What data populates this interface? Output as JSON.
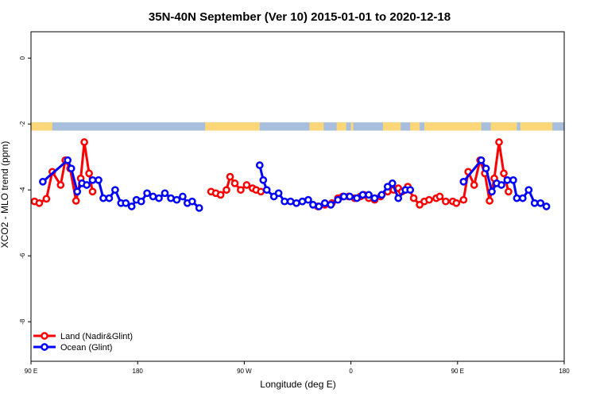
{
  "chart_data": {
    "type": "line",
    "title": "35N-40N September (Ver 10)   2015-01-01 to 2020-12-18",
    "xlabel": "Longitude (deg E)",
    "ylabel": "XCO2 - MLO trend (ppm)",
    "xlim": [
      90,
      540
    ],
    "ylim": [
      -9.2,
      0.8
    ],
    "x_ticks": [
      {
        "value": 90,
        "label": "90 E"
      },
      {
        "value": 180,
        "label": "180"
      },
      {
        "value": 270,
        "label": "90 W"
      },
      {
        "value": 360,
        "label": "0"
      },
      {
        "value": 450,
        "label": "90 E"
      },
      {
        "value": 540,
        "label": "180"
      }
    ],
    "y_ticks": [
      {
        "value": 0,
        "label": "0"
      },
      {
        "value": -2,
        "label": "-2"
      },
      {
        "value": -4,
        "label": "-4"
      },
      {
        "value": -6,
        "label": "-6"
      },
      {
        "value": -8,
        "label": "-8"
      }
    ],
    "grid": false,
    "legend_position": "bottom-left",
    "map_strip": {
      "y_range": [
        -2.2,
        -1.95
      ],
      "ocean_color": "#a7bfdc",
      "land_color": "#fcd77a",
      "land_ranges": [
        [
          90,
          100
        ],
        [
          100,
          108
        ],
        [
          237,
          283
        ],
        [
          325,
          337
        ],
        [
          348,
          356
        ],
        [
          360,
          362
        ],
        [
          387,
          402
        ],
        [
          410,
          418
        ],
        [
          422,
          470
        ],
        [
          478,
          500
        ],
        [
          503,
          530
        ]
      ]
    },
    "series": [
      {
        "name": "Land (Nadir&Glint)",
        "color": "#ff0000",
        "segments": [
          [
            [
              93,
              -4.35
            ],
            [
              97,
              -4.4
            ],
            [
              103,
              -4.27
            ],
            [
              108,
              -3.45
            ],
            [
              115,
              -3.85
            ],
            [
              119,
              -3.1
            ],
            [
              123,
              -3.35
            ],
            [
              128,
              -4.33
            ],
            [
              132,
              -3.65
            ],
            [
              135,
              -2.55
            ],
            [
              139,
              -3.5
            ],
            [
              142,
              -4.05
            ]
          ],
          [
            [
              242,
              -4.05
            ],
            [
              246,
              -4.1
            ],
            [
              250,
              -4.15
            ],
            [
              255,
              -4.0
            ],
            [
              258,
              -3.6
            ],
            [
              262,
              -3.8
            ],
            [
              267,
              -4.0
            ],
            [
              272,
              -3.85
            ],
            [
              277,
              -3.95
            ],
            [
              280,
              -4.0
            ],
            [
              284,
              -4.05
            ]
          ],
          [
            [
              332,
              -4.5
            ],
            [
              338,
              -4.45
            ],
            [
              344,
              -4.4
            ],
            [
              349,
              -4.25
            ],
            [
              353,
              -4.2
            ],
            [
              358,
              -4.2
            ],
            [
              363,
              -4.25
            ],
            [
              368,
              -4.2
            ],
            [
              371,
              -4.15
            ],
            [
              375,
              -4.25
            ],
            [
              380,
              -4.3
            ],
            [
              385,
              -4.2
            ],
            [
              391,
              -4.05
            ],
            [
              396,
              -4.0
            ],
            [
              400,
              -3.95
            ],
            [
              403,
              -4.05
            ],
            [
              408,
              -3.9
            ],
            [
              413,
              -4.25
            ],
            [
              418,
              -4.45
            ],
            [
              422,
              -4.35
            ],
            [
              426,
              -4.3
            ],
            [
              432,
              -4.25
            ],
            [
              435,
              -4.2
            ],
            [
              440,
              -4.35
            ],
            [
              446,
              -4.35
            ],
            [
              449,
              -4.4
            ],
            [
              455,
              -4.3
            ],
            [
              459,
              -3.45
            ],
            [
              464,
              -3.85
            ],
            [
              469,
              -3.1
            ],
            [
              473,
              -3.5
            ],
            [
              477,
              -4.33
            ],
            [
              481,
              -3.65
            ],
            [
              485,
              -2.55
            ],
            [
              489,
              -3.5
            ],
            [
              493,
              -4.05
            ]
          ]
        ]
      },
      {
        "name": "Ocean (Glint)",
        "color": "#0000ff",
        "segments": [
          [
            [
              100,
              -3.75
            ],
            [
              121,
              -3.1
            ],
            [
              124,
              -3.35
            ],
            [
              129,
              -4.05
            ],
            [
              133,
              -3.8
            ],
            [
              137,
              -3.85
            ],
            [
              142,
              -3.7
            ],
            [
              147,
              -3.7
            ],
            [
              151,
              -4.25
            ],
            [
              156,
              -4.25
            ],
            [
              161,
              -4.0
            ],
            [
              166,
              -4.4
            ],
            [
              170,
              -4.4
            ],
            [
              175,
              -4.5
            ],
            [
              179,
              -4.3
            ],
            [
              183,
              -4.35
            ],
            [
              188,
              -4.1
            ],
            [
              193,
              -4.2
            ],
            [
              198,
              -4.25
            ],
            [
              203,
              -4.1
            ],
            [
              208,
              -4.25
            ],
            [
              213,
              -4.3
            ],
            [
              218,
              -4.2
            ],
            [
              222,
              -4.4
            ],
            [
              226,
              -4.35
            ],
            [
              232,
              -4.55
            ]
          ],
          [
            [
              283,
              -3.25
            ],
            [
              286,
              -3.7
            ],
            [
              289,
              -4.0
            ],
            [
              295,
              -4.2
            ],
            [
              299,
              -4.1
            ],
            [
              304,
              -4.35
            ],
            [
              309,
              -4.35
            ],
            [
              314,
              -4.4
            ],
            [
              319,
              -4.35
            ],
            [
              324,
              -4.3
            ],
            [
              328,
              -4.45
            ],
            [
              333,
              -4.5
            ],
            [
              338,
              -4.4
            ],
            [
              343,
              -4.45
            ],
            [
              349,
              -4.3
            ],
            [
              354,
              -4.2
            ],
            [
              359,
              -4.2
            ],
            [
              365,
              -4.25
            ],
            [
              370,
              -4.15
            ],
            [
              375,
              -4.15
            ],
            [
              380,
              -4.25
            ],
            [
              386,
              -4.15
            ],
            [
              391,
              -3.9
            ],
            [
              395,
              -3.8
            ],
            [
              400,
              -4.25
            ],
            [
              406,
              -4.0
            ],
            [
              410,
              -4.0
            ]
          ],
          [
            [
              455,
              -3.75
            ],
            [
              470,
              -3.1
            ],
            [
              474,
              -3.35
            ],
            [
              479,
              -4.05
            ],
            [
              483,
              -3.8
            ],
            [
              487,
              -3.85
            ],
            [
              492,
              -3.7
            ],
            [
              497,
              -3.7
            ],
            [
              500,
              -4.25
            ],
            [
              505,
              -4.25
            ],
            [
              510,
              -4.0
            ],
            [
              515,
              -4.4
            ],
            [
              520,
              -4.4
            ],
            [
              525,
              -4.5
            ]
          ]
        ]
      }
    ]
  }
}
